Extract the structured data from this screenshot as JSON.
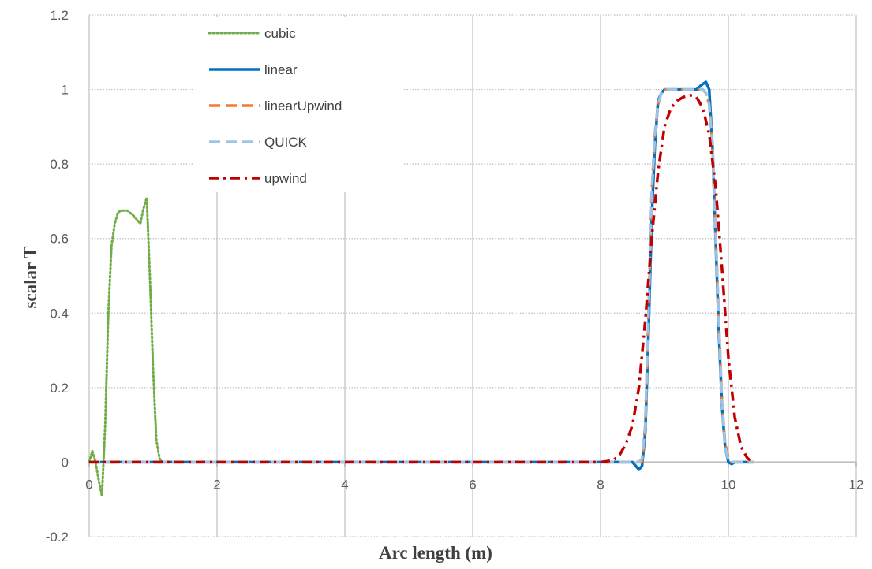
{
  "chart_data": {
    "type": "line",
    "xlabel": "Arc length (m)",
    "ylabel": "scalar T",
    "xlim": [
      0,
      12
    ],
    "ylim": [
      -0.2,
      1.2
    ],
    "xticks": [
      0,
      2,
      4,
      6,
      8,
      10,
      12
    ],
    "yticks": [
      -0.2,
      0,
      0.2,
      0.4,
      0.6,
      0.8,
      1,
      1.2
    ],
    "x_tick_labels": [
      "0",
      "2",
      "4",
      "6",
      "8",
      "10",
      "12"
    ],
    "y_tick_labels": [
      "-0.2",
      "0",
      "0.2",
      "0.4",
      "0.6",
      "0.8",
      "1",
      "1.2"
    ],
    "grid": true,
    "legend_position": "top-left",
    "series": [
      {
        "name": "cubic",
        "color": "#70AD47",
        "style": "dotted",
        "x": [
          0,
          0.05,
          0.1,
          0.15,
          0.2,
          0.25,
          0.3,
          0.35,
          0.4,
          0.45,
          0.5,
          0.6,
          0.7,
          0.8,
          0.85,
          0.9,
          0.95,
          1.0,
          1.05,
          1.1,
          1.15,
          1.2,
          1.25
        ],
        "values": [
          0,
          0.03,
          0.0,
          -0.05,
          -0.09,
          0.1,
          0.4,
          0.58,
          0.64,
          0.67,
          0.675,
          0.675,
          0.66,
          0.64,
          0.68,
          0.71,
          0.5,
          0.25,
          0.06,
          0.01,
          0,
          0,
          0
        ]
      },
      {
        "name": "linear",
        "color": "#0070C0",
        "style": "solid",
        "x": [
          0,
          8.0,
          8.45,
          8.5,
          8.55,
          8.6,
          8.65,
          8.7,
          8.75,
          8.8,
          8.85,
          8.9,
          8.95,
          9.0,
          9.1,
          9.3,
          9.5,
          9.6,
          9.65,
          9.7,
          9.75,
          9.8,
          9.85,
          9.9,
          9.95,
          10.0,
          10.05,
          10.1,
          10.2,
          10.4
        ],
        "values": [
          0,
          0,
          0.0,
          0.0,
          -0.01,
          -0.02,
          -0.01,
          0.08,
          0.35,
          0.65,
          0.85,
          0.97,
          0.99,
          1.0,
          1.0,
          1.0,
          1.0,
          1.015,
          1.02,
          1.0,
          0.85,
          0.6,
          0.35,
          0.15,
          0.04,
          0.0,
          -0.005,
          0.0,
          0,
          0
        ]
      },
      {
        "name": "linearUpwind",
        "color": "#ED7D31",
        "style": "dash",
        "x": [
          0,
          8.0,
          8.6,
          8.65,
          8.7,
          8.75,
          8.8,
          8.85,
          8.9,
          8.95,
          9.0,
          9.05,
          9.1,
          9.3,
          9.5,
          9.6,
          9.65,
          9.7,
          9.75,
          9.8,
          9.85,
          9.9,
          9.95,
          10.0,
          10.05,
          10.1,
          10.2,
          10.4
        ],
        "values": [
          0,
          0,
          0,
          0.0,
          0.1,
          0.4,
          0.72,
          0.88,
          0.96,
          0.99,
          1.0,
          1.0,
          1.0,
          1.0,
          1.0,
          1.0,
          0.99,
          0.96,
          0.85,
          0.62,
          0.38,
          0.16,
          0.05,
          0.01,
          0,
          0,
          0,
          0
        ]
      },
      {
        "name": "QUICK",
        "color": "#9DC3E6",
        "style": "dash",
        "x": [
          0,
          8.0,
          8.55,
          8.6,
          8.65,
          8.7,
          8.75,
          8.8,
          8.85,
          8.9,
          8.95,
          9.0,
          9.1,
          9.3,
          9.5,
          9.6,
          9.65,
          9.7,
          9.75,
          9.8,
          9.85,
          9.9,
          9.95,
          10.0,
          10.05,
          10.1,
          10.2,
          10.4
        ],
        "values": [
          0,
          0,
          0,
          0.0,
          0.01,
          0.1,
          0.4,
          0.72,
          0.88,
          0.96,
          0.99,
          1.0,
          1.0,
          1.0,
          1.0,
          1.0,
          0.99,
          0.96,
          0.85,
          0.62,
          0.38,
          0.16,
          0.04,
          0.005,
          0,
          0,
          0,
          0
        ]
      },
      {
        "name": "upwind",
        "color": "#C00000",
        "style": "dashdot",
        "x": [
          0,
          8.0,
          8.2,
          8.3,
          8.4,
          8.5,
          8.6,
          8.7,
          8.8,
          8.9,
          9.0,
          9.1,
          9.2,
          9.3,
          9.4,
          9.5,
          9.6,
          9.7,
          9.8,
          9.9,
          10.0,
          10.1,
          10.2,
          10.3,
          10.4
        ],
        "values": [
          0,
          0,
          0.005,
          0.02,
          0.05,
          0.1,
          0.2,
          0.38,
          0.6,
          0.78,
          0.9,
          0.95,
          0.97,
          0.98,
          0.985,
          0.98,
          0.95,
          0.88,
          0.74,
          0.52,
          0.28,
          0.12,
          0.04,
          0.01,
          0
        ]
      }
    ]
  }
}
